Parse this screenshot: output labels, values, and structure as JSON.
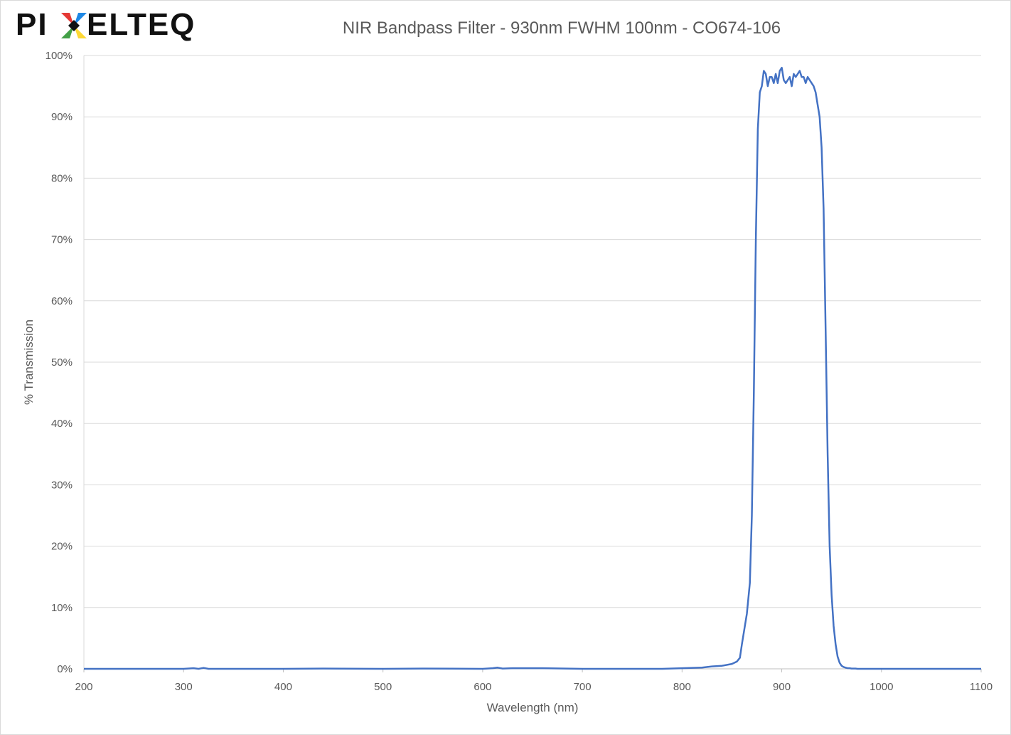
{
  "logo": {
    "text_left": "PI",
    "text_right": "ELTEQ",
    "colors": [
      "#e53935",
      "#1e88e5",
      "#fdd835",
      "#43a047"
    ]
  },
  "chart_data": {
    "type": "line",
    "title": "NIR Bandpass Filter - 930nm FWHM 100nm - CO674-106",
    "xlabel": "Wavelength (nm)",
    "ylabel": "% Transmission",
    "xlim": [
      200,
      1100
    ],
    "ylim": [
      0,
      100
    ],
    "x_ticks": [
      200,
      300,
      400,
      500,
      600,
      700,
      800,
      900,
      1000,
      1100
    ],
    "y_ticks": [
      "0%",
      "10%",
      "20%",
      "30%",
      "40%",
      "50%",
      "60%",
      "70%",
      "80%",
      "90%",
      "100%"
    ],
    "grid": true,
    "legend": "none",
    "line_color": "#4472c4",
    "series": [
      {
        "x": [
          200,
          300,
          310,
          315,
          320,
          325,
          330,
          400,
          440,
          500,
          540,
          600,
          610,
          615,
          620,
          630,
          660,
          700,
          750,
          780,
          800,
          820,
          830,
          840,
          850,
          855,
          858,
          860,
          862,
          865,
          868,
          870,
          872,
          874,
          876,
          878,
          880,
          882,
          884,
          886,
          888,
          890,
          892,
          894,
          896,
          898,
          900,
          902,
          904,
          906,
          908,
          910,
          912,
          914,
          916,
          918,
          920,
          922,
          924,
          926,
          928,
          930,
          932,
          934,
          936,
          938,
          940,
          942,
          944,
          946,
          948,
          950,
          952,
          954,
          956,
          958,
          960,
          962,
          964,
          966,
          968,
          970,
          972,
          974,
          976,
          978,
          980,
          982,
          984,
          986,
          988,
          990,
          995,
          1000,
          1010,
          1020,
          1050,
          1100
        ],
        "y": [
          0,
          0,
          0.1,
          0,
          0.15,
          0,
          0,
          0,
          0.05,
          0,
          0.05,
          0,
          0.1,
          0.2,
          0.05,
          0.1,
          0.1,
          0,
          0,
          0,
          0.1,
          0.2,
          0.4,
          0.5,
          0.8,
          1.2,
          1.8,
          4,
          6,
          9,
          14,
          25,
          45,
          70,
          88,
          94,
          95,
          97.5,
          97,
          95,
          96.5,
          96.5,
          95.5,
          97,
          95.5,
          97.5,
          98,
          96,
          95.5,
          96,
          96.5,
          95,
          97,
          96.5,
          97,
          97.5,
          96.5,
          96.5,
          95.5,
          96.5,
          96,
          95.5,
          95,
          94,
          92,
          90,
          85,
          75,
          55,
          35,
          20,
          12,
          7,
          4,
          2,
          1,
          0.5,
          0.3,
          0.2,
          0.1,
          0.1,
          0.05,
          0.05,
          0.05,
          0,
          0,
          0,
          0,
          0,
          0,
          0,
          0,
          0,
          0,
          0,
          0,
          0,
          0
        ]
      }
    ]
  }
}
